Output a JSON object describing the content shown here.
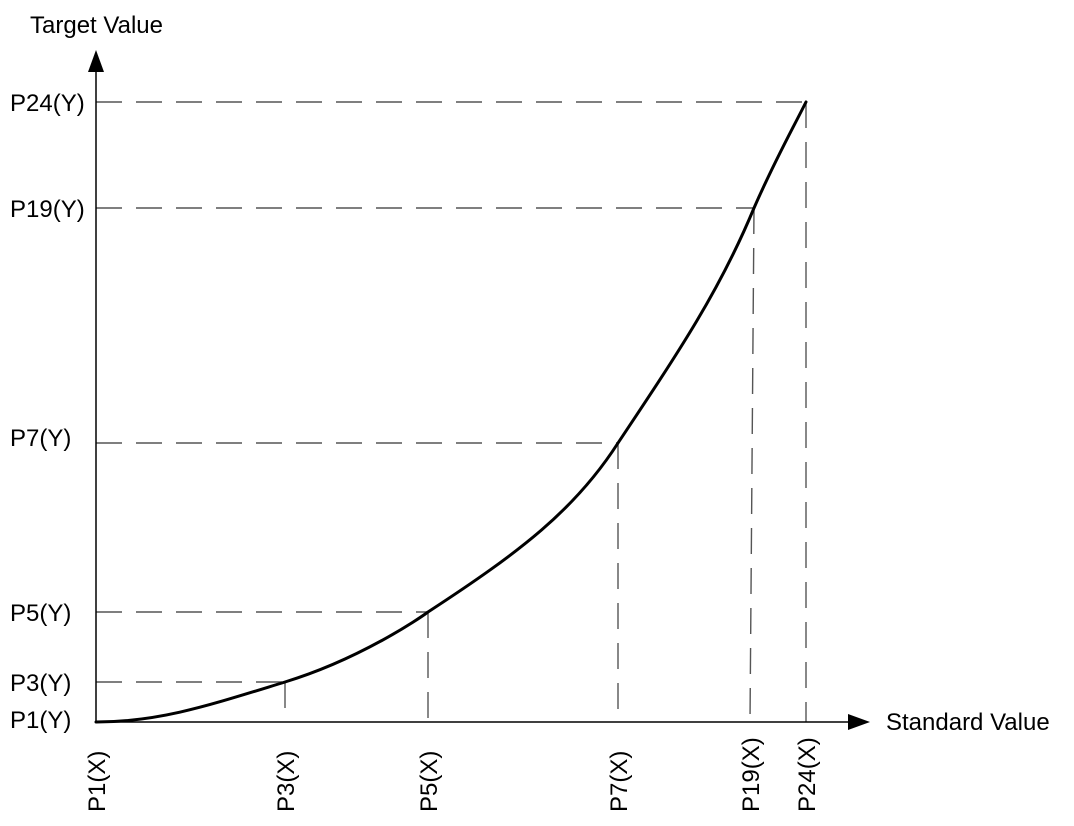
{
  "diagram": {
    "y_axis_title": "Target Value",
    "x_axis_title": "Standard Value",
    "points": [
      {
        "id": "P1",
        "x_label": "P1(X)",
        "y_label": "P1(Y)"
      },
      {
        "id": "P3",
        "x_label": "P3(X)",
        "y_label": "P3(Y)"
      },
      {
        "id": "P5",
        "x_label": "P5(X)",
        "y_label": "P5(Y)"
      },
      {
        "id": "P7",
        "x_label": "P7(X)",
        "y_label": "P7(Y)"
      },
      {
        "id": "P19",
        "x_label": "P19(X)",
        "y_label": "P19(Y)"
      },
      {
        "id": "P24",
        "x_label": "P24(X)",
        "y_label": "P24(Y)"
      }
    ],
    "curve_color": "#000000",
    "guide_color": "#555555"
  }
}
